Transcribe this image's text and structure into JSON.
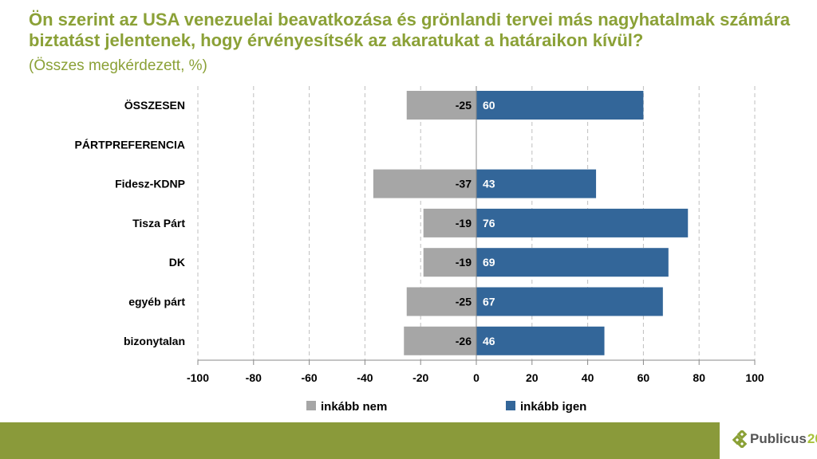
{
  "title": "Ön szerint az USA venezuelai beavatkozása és grönlandi tervei más nagyhatalmak számára biztatást jelentenek, hogy érvényesítsék az akaratukat a határaikon kívül?",
  "subtitle": "(Összes megkérdezett, %)",
  "chart_data": {
    "type": "bar",
    "orientation": "horizontal-diverging",
    "categories": [
      "ÖSSZESEN",
      "PÁRTPREFERENCIA",
      "Fidesz-KDNP",
      "Tisza Párt",
      "DK",
      "egyéb párt",
      "bizonytalan"
    ],
    "series": [
      {
        "name": "inkább nem",
        "color": "#a6a6a6",
        "values": [
          -25,
          null,
          -37,
          -19,
          -19,
          -25,
          -26
        ]
      },
      {
        "name": "inkább igen",
        "color": "#336699",
        "values": [
          60,
          null,
          43,
          76,
          69,
          67,
          46
        ]
      }
    ],
    "xlim": [
      -100,
      100
    ],
    "xticks": [
      -100,
      -80,
      -60,
      -40,
      -20,
      0,
      20,
      40,
      60,
      80,
      100
    ],
    "grid": true,
    "legend": "bottom"
  },
  "footer": {
    "logo_text": "Publicus",
    "logo_number": "20"
  }
}
